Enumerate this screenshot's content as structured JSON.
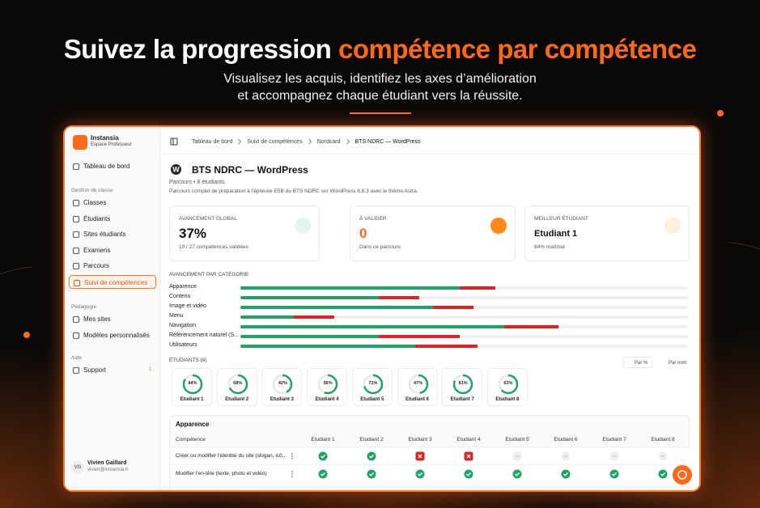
{
  "hero": {
    "title_white": "Suivez la progression",
    "title_accent": "compétence par compétence",
    "subtitle_lines": [
      "Visualisez les acquis, identifiez les axes d’amélioration",
      "et accompagnez chaque étudiant vers la réussite."
    ]
  },
  "sidebar": {
    "brand": "Instansia",
    "role": "Espace Professeur",
    "dashboard": "Tableau de bord",
    "sections": [
      {
        "title": "Gestion de classe",
        "items": [
          "Classes",
          "Étudiants",
          "Sites étudiants",
          "Examens",
          "Parcours",
          "Suivi de compétences"
        ]
      },
      {
        "title": "Pédagogie",
        "items": [
          "Mes sites",
          "Modèles personnalisés"
        ]
      },
      {
        "title": "Aide",
        "items": [
          "Support"
        ]
      }
    ],
    "support_badge": "1",
    "user": {
      "initials": "VG",
      "name": "Vivien Gaillard",
      "email": "vivien@instansia.fr"
    }
  },
  "breadcrumb": [
    "Tableau de bord",
    "Suivi de compétences",
    "Nordcard",
    "BTS NDRC — WordPress"
  ],
  "page": {
    "title": "BTS NDRC — WordPress",
    "meta": "Parcours • 8 étudiants",
    "description": "Parcours complet de préparation à l'épreuve E5B du BTS NDRC sur WordPress 6.8.3 avec le thème Astra."
  },
  "stats": [
    {
      "label": "AVANCEMENT GLOBAL",
      "value": "37%",
      "note": "10 / 27 compétences validées"
    },
    {
      "label": "À VALIDER",
      "value": "0",
      "note": "Dans ce parcours"
    },
    {
      "label": "MEILLEUR ÉTUDIANT",
      "value": "Etudiant 1",
      "note": "84% maîtrisé"
    }
  ],
  "categories": {
    "title": "AVANCEMENT PAR CATÉGORIE",
    "items": [
      {
        "name": "Apparence",
        "validated": 49,
        "failed": 8
      },
      {
        "name": "Contenu",
        "validated": 31,
        "failed": 9
      },
      {
        "name": "Image et vidéo",
        "validated": 43,
        "failed": 9
      },
      {
        "name": "Menu",
        "validated": 12,
        "failed": 9
      },
      {
        "name": "Navigation",
        "validated": 59,
        "failed": 12
      },
      {
        "name": "Référencement naturel (S...",
        "validated": 31,
        "failed": 18
      },
      {
        "name": "Utilisateurs",
        "validated": 39,
        "failed": 14
      }
    ]
  },
  "students": {
    "title": "ÉTUDIANTS (8)",
    "sort": [
      "Par %",
      "Par nom"
    ],
    "items": [
      {
        "name": "Etudiant 1",
        "progress": "84%"
      },
      {
        "name": "Etudiant 2",
        "progress": "68%"
      },
      {
        "name": "Etudiant 3",
        "progress": "42%"
      },
      {
        "name": "Etudiant 4",
        "progress": "56%"
      },
      {
        "name": "Etudiant 5",
        "progress": "71%"
      },
      {
        "name": "Etudiant 6",
        "progress": "47%"
      },
      {
        "name": "Etudiant 7",
        "progress": "81%"
      },
      {
        "name": "Etudiant 8",
        "progress": "63%"
      }
    ]
  },
  "table": {
    "section": "Apparence",
    "header": [
      "Compétence",
      "Etudiant 1",
      "Etudiant 2",
      "Etudiant 3",
      "Etudiant 4",
      "Etudiant 5",
      "Etudiant 6",
      "Etudiant 7",
      "Etudiant 8"
    ],
    "rows": [
      "Créer ou modifier l'identité du site (slogan, icô...",
      "Modifier l'en-tête (texte, photo et vidéo)"
    ]
  }
}
